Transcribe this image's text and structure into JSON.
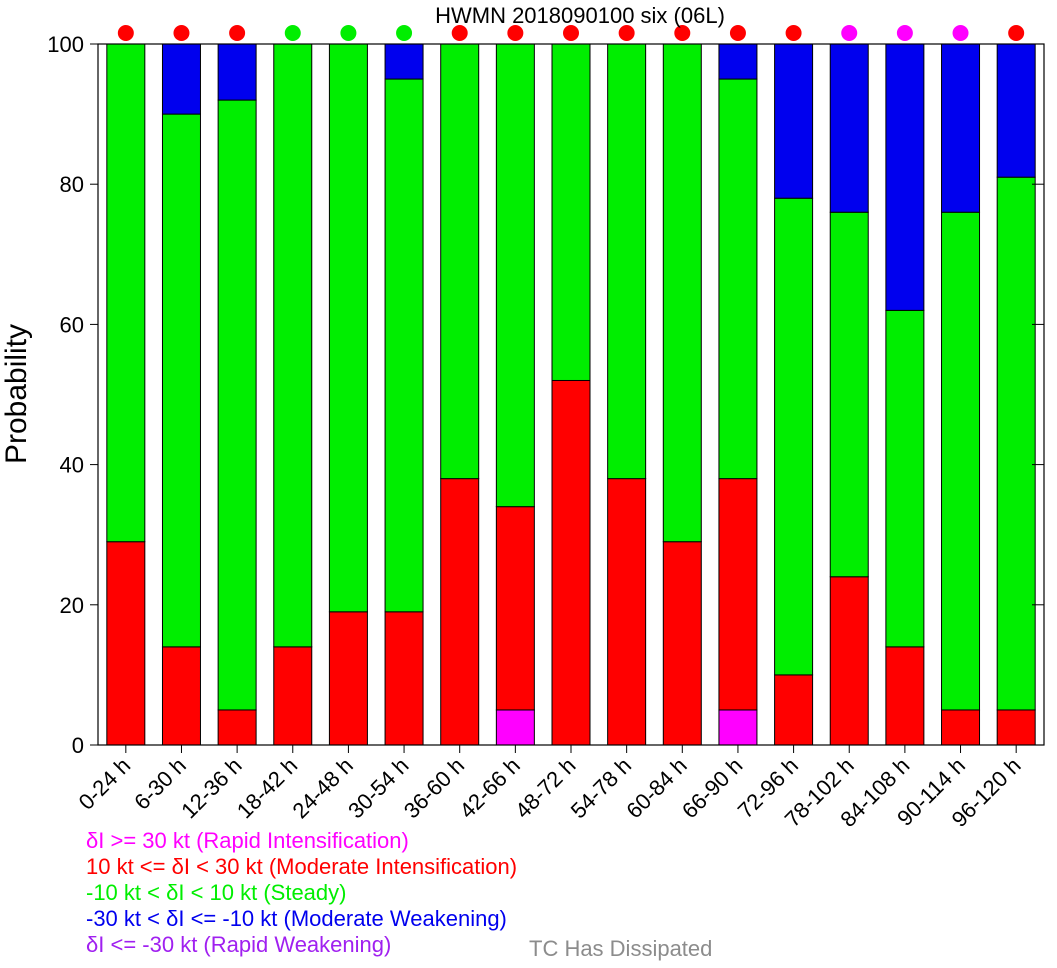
{
  "chart_data": {
    "type": "bar",
    "stacked": true,
    "title": "HWMN 2018090100 six (06L)",
    "ylabel": "Probability",
    "xlabel": "",
    "ylim": [
      0,
      100
    ],
    "yticks": [
      0,
      20,
      40,
      60,
      80,
      100
    ],
    "grid": false,
    "categories": [
      "0-24 h",
      "6-30 h",
      "12-36 h",
      "18-42 h",
      "24-48 h",
      "30-54 h",
      "36-60 h",
      "42-66 h",
      "48-72 h",
      "54-78 h",
      "60-84 h",
      "66-90 h",
      "72-96 h",
      "78-102 h",
      "84-108 h",
      "90-114 h",
      "96-120 h"
    ],
    "series": [
      {
        "key": "ri",
        "color": "#ff00ff",
        "values": [
          0,
          0,
          0,
          0,
          0,
          0,
          0,
          5,
          0,
          0,
          0,
          5,
          0,
          0,
          0,
          0,
          0
        ]
      },
      {
        "key": "mi",
        "color": "#ff0000",
        "values": [
          29,
          14,
          5,
          14,
          19,
          19,
          38,
          29,
          52,
          38,
          29,
          33,
          10,
          24,
          14,
          5,
          5
        ]
      },
      {
        "key": "st",
        "color": "#00ee00",
        "values": [
          71,
          76,
          87,
          86,
          81,
          76,
          62,
          66,
          48,
          62,
          71,
          57,
          68,
          52,
          48,
          71,
          76
        ]
      },
      {
        "key": "mw",
        "color": "#0000ee",
        "values": [
          0,
          10,
          8,
          0,
          0,
          5,
          0,
          0,
          0,
          0,
          0,
          5,
          22,
          24,
          38,
          24,
          19
        ]
      },
      {
        "key": "rw",
        "color": "#a020f0",
        "values": [
          0,
          0,
          0,
          0,
          0,
          0,
          0,
          0,
          0,
          0,
          0,
          0,
          0,
          0,
          0,
          0,
          0
        ]
      }
    ],
    "top_dots": [
      "#ff0000",
      "#ff0000",
      "#ff0000",
      "#00ee00",
      "#00ee00",
      "#00ee00",
      "#ff0000",
      "#ff0000",
      "#ff0000",
      "#ff0000",
      "#ff0000",
      "#ff0000",
      "#ff0000",
      "#ff00ff",
      "#ff00ff",
      "#ff00ff",
      "#ff0000"
    ]
  },
  "legend": {
    "items": [
      {
        "text": "δI >= 30 kt (Rapid Intensification)",
        "color": "#ff00ff"
      },
      {
        "text": "10 kt <= δI < 30 kt (Moderate Intensification)",
        "color": "#ff0000"
      },
      {
        "text": "-10 kt < δI < 10 kt (Steady)",
        "color": "#00ee00"
      },
      {
        "text": "-30 kt < δI <= -10 kt (Moderate Weakening)",
        "color": "#0000ee"
      },
      {
        "text": "δI <= -30 kt (Rapid Weakening)",
        "color": "#a020f0"
      }
    ],
    "dissipated": "TC Has Dissipated"
  }
}
